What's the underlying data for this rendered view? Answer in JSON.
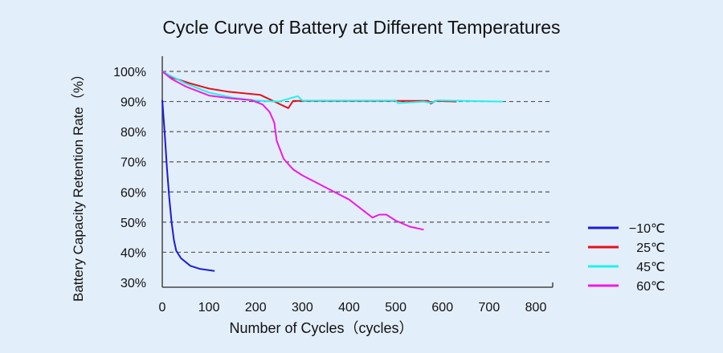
{
  "chart_data": {
    "type": "line",
    "title": "Cycle Curve of Battery at Different Temperatures",
    "xlabel": "Number of Cycles（cycles）",
    "ylabel": "Battery Capacity Retention Rate（%）",
    "xlim": [
      0,
      800
    ],
    "ylim": [
      30,
      100
    ],
    "x_ticks": [
      0,
      100,
      200,
      300,
      400,
      500,
      600,
      700,
      800
    ],
    "y_ticks": [
      30,
      40,
      50,
      60,
      70,
      80,
      90,
      100
    ],
    "y_tick_labels": [
      "30%",
      "40%",
      "50%",
      "60%",
      "70%",
      "80%",
      "90%",
      "100%"
    ],
    "grid": "horizontal dashed",
    "legend_position": "right",
    "series": [
      {
        "name": "−10℃",
        "color": "#1a1adf",
        "points": [
          [
            0,
            90.5
          ],
          [
            5,
            80
          ],
          [
            10,
            68
          ],
          [
            15,
            58
          ],
          [
            20,
            50
          ],
          [
            25,
            44
          ],
          [
            30,
            40.5
          ],
          [
            40,
            38
          ],
          [
            60,
            35.5
          ],
          [
            80,
            34.5
          ],
          [
            112,
            33.8
          ]
        ]
      },
      {
        "name": "25℃",
        "color": "#e8101c",
        "points": [
          [
            0,
            100
          ],
          [
            20,
            98
          ],
          [
            60,
            96
          ],
          [
            100,
            94.3
          ],
          [
            140,
            93.3
          ],
          [
            210,
            92.2
          ],
          [
            270,
            87.8
          ],
          [
            280,
            90.2
          ],
          [
            400,
            90.2
          ],
          [
            500,
            90.2
          ],
          [
            570,
            90.2
          ],
          [
            575,
            89.3
          ],
          [
            585,
            90.2
          ],
          [
            630,
            90
          ]
        ]
      },
      {
        "name": "45℃",
        "color": "#22f0f0",
        "points": [
          [
            0,
            100
          ],
          [
            50,
            96
          ],
          [
            100,
            93
          ],
          [
            150,
            91.3
          ],
          [
            200,
            90.3
          ],
          [
            250,
            90
          ],
          [
            290,
            91.8
          ],
          [
            300,
            90.3
          ],
          [
            500,
            90.3
          ],
          [
            505,
            89.5
          ],
          [
            560,
            90
          ],
          [
            575,
            89.6
          ],
          [
            590,
            90.4
          ],
          [
            730,
            90
          ]
        ]
      },
      {
        "name": "60℃",
        "color": "#ee1ae6",
        "points": [
          [
            0,
            100
          ],
          [
            20,
            97.5
          ],
          [
            50,
            95
          ],
          [
            100,
            92
          ],
          [
            150,
            91
          ],
          [
            190,
            90.5
          ],
          [
            215,
            89
          ],
          [
            230,
            86.5
          ],
          [
            240,
            83
          ],
          [
            245,
            77
          ],
          [
            260,
            71
          ],
          [
            280,
            67.5
          ],
          [
            300,
            65.5
          ],
          [
            350,
            61.5
          ],
          [
            400,
            57.5
          ],
          [
            450,
            51.5
          ],
          [
            465,
            52.5
          ],
          [
            480,
            52.5
          ],
          [
            500,
            50.5
          ],
          [
            530,
            48.5
          ],
          [
            560,
            47.5
          ]
        ]
      }
    ]
  }
}
